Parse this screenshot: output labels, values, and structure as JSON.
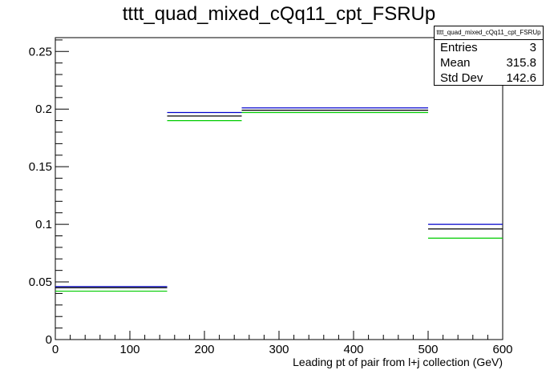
{
  "title": "tttt_quad_mixed_cQq11_cpt_FSRUp",
  "stats": {
    "name": "tttt_quad_mixed_cQq11_cpt_FSRUp",
    "rows": [
      {
        "label": "Entries",
        "value": "3"
      },
      {
        "label": "Mean",
        "value": "315.8"
      },
      {
        "label": "Std Dev",
        "value": "142.6"
      }
    ]
  },
  "colors": {
    "blue": "#0000cc",
    "black": "#000000",
    "green": "#00cc00"
  },
  "chart_data": {
    "type": "bar",
    "title": "tttt_quad_mixed_cQq11_cpt_FSRUp",
    "xlabel": "Leading pt of pair from l+j collection (GeV)",
    "ylabel": "",
    "xlim": [
      0,
      600
    ],
    "ylim": [
      0,
      0.262
    ],
    "grid": false,
    "bins": [
      [
        0,
        150
      ],
      [
        150,
        250
      ],
      [
        250,
        500
      ],
      [
        500,
        600
      ]
    ],
    "x_ticks": [
      "0",
      "100",
      "200",
      "300",
      "400",
      "500",
      "600"
    ],
    "y_ticks": [
      "0",
      "0.05",
      "0.1",
      "0.15",
      "0.2",
      "0.25"
    ],
    "series": [
      {
        "color": "#0000cc",
        "values": [
          0.046,
          0.197,
          0.201,
          0.1
        ]
      },
      {
        "color": "#000000",
        "values": [
          0.045,
          0.194,
          0.199,
          0.096
        ]
      },
      {
        "color": "#00cc00",
        "values": [
          0.042,
          0.19,
          0.197,
          0.088
        ]
      }
    ]
  }
}
